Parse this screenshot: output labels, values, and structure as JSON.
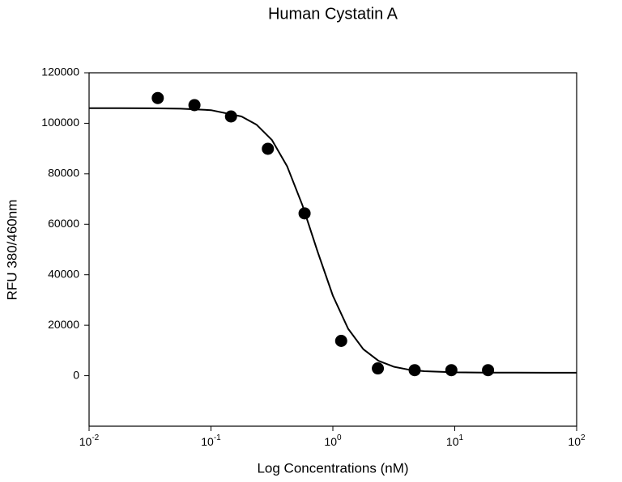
{
  "chart_data": {
    "type": "scatter",
    "title": "Human Cystatin A",
    "x_label": "Log Concentrations (nM)",
    "y_label": "RFU 380/460nm",
    "x_scale": "log",
    "xlim": [
      0.01,
      100
    ],
    "xticks": [
      {
        "value": 0.01,
        "label": "10",
        "exponent": "-2"
      },
      {
        "value": 0.1,
        "label": "10",
        "exponent": "-1"
      },
      {
        "value": 1,
        "label": "10",
        "exponent": "0"
      },
      {
        "value": 10,
        "label": "10",
        "exponent": "1"
      },
      {
        "value": 100,
        "label": "10",
        "exponent": "2"
      }
    ],
    "ylim": [
      -20000,
      120000
    ],
    "yticks": [
      0,
      20000,
      40000,
      60000,
      80000,
      100000,
      120000
    ],
    "grid": false,
    "series": [
      {
        "kind": "points",
        "color": "#000000",
        "x": [
          0.0366,
          0.0732,
          0.146,
          0.293,
          0.586,
          1.17,
          2.34,
          4.69,
          9.38,
          18.75
        ],
        "values": [
          110000,
          107200,
          102700,
          89900,
          64300,
          13800,
          2900,
          2200,
          2200,
          2200
        ]
      },
      {
        "kind": "line",
        "color": "#000000",
        "x": [
          0.01,
          0.0178,
          0.0316,
          0.0562,
          0.1,
          0.178,
          0.237,
          0.316,
          0.422,
          0.562,
          0.75,
          1,
          1.334,
          1.778,
          2.371,
          3.162,
          4.217,
          5.623,
          10,
          17.78,
          31.62,
          56.23,
          100
        ],
        "values": [
          106000,
          106000,
          105950,
          105800,
          105200,
          102700,
          99400,
          93400,
          82900,
          67600,
          49100,
          31700,
          18600,
          10500,
          5900,
          3560,
          2360,
          1770,
          1335,
          1230,
          1210,
          1200,
          1200
        ]
      }
    ]
  }
}
